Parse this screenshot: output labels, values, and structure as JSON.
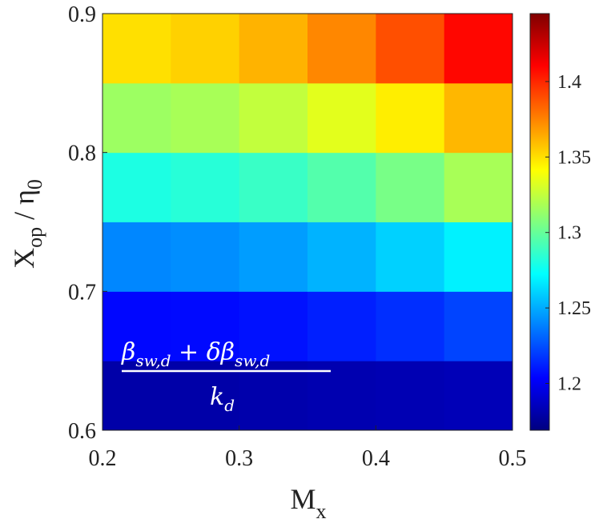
{
  "chart_data": {
    "type": "heatmap",
    "x_bins": [
      0.2,
      0.25,
      0.3,
      0.35,
      0.4,
      0.45,
      0.5
    ],
    "y_bins": [
      0.6,
      0.65,
      0.7,
      0.75,
      0.8,
      0.85,
      0.9
    ],
    "z": [
      [
        1.18,
        1.18,
        1.181,
        1.182,
        1.183,
        1.184
      ],
      [
        1.205,
        1.206,
        1.208,
        1.212,
        1.216,
        1.222
      ],
      [
        1.24,
        1.242,
        1.246,
        1.252,
        1.26,
        1.269
      ],
      [
        1.28,
        1.283,
        1.288,
        1.295,
        1.305,
        1.318
      ],
      [
        1.315,
        1.318,
        1.325,
        1.334,
        1.346,
        1.361
      ],
      [
        1.35,
        1.354,
        1.362,
        1.374,
        1.389,
        1.409
      ]
    ],
    "colormap": "jet",
    "xlim": [
      0.2,
      0.5
    ],
    "xticks": [
      0.2,
      0.3,
      0.4,
      0.5
    ],
    "ylim": [
      0.6,
      0.9
    ],
    "yticks": [
      0.6,
      0.7,
      0.8,
      0.9
    ],
    "clim": [
      1.169,
      1.445
    ],
    "cticks": [
      1.2,
      1.25,
      1.3,
      1.35,
      1.4
    ],
    "xlabel": [
      "M",
      "x"
    ],
    "ylabel": [
      "X",
      "op",
      " / η",
      "0"
    ],
    "annotation": {
      "numerator": [
        "β",
        "sw,d",
        " + δβ",
        "sw,d"
      ],
      "denominator": [
        "k",
        "d"
      ]
    }
  }
}
